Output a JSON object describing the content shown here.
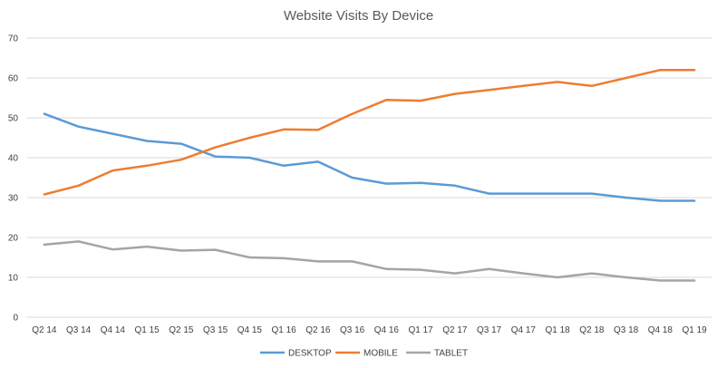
{
  "chart_data": {
    "type": "line",
    "title": "Website Visits By Device",
    "xlabel": "",
    "ylabel": "",
    "ylim": [
      0,
      70
    ],
    "yticks": [
      0,
      10,
      20,
      30,
      40,
      50,
      60,
      70
    ],
    "grid": true,
    "legend": "bottom",
    "categories": [
      "Q2 14",
      "Q3 14",
      "Q4 14",
      "Q1 15",
      "Q2 15",
      "Q3 15",
      "Q4 15",
      "Q1 16",
      "Q2 16",
      "Q3 16",
      "Q4 16",
      "Q1 17",
      "Q2 17",
      "Q3 17",
      "Q4 17",
      "Q1 18",
      "Q2 18",
      "Q3 18",
      "Q4 18",
      "Q1 19"
    ],
    "series": [
      {
        "name": "DESKTOP",
        "color": "#5b9bd5",
        "values": [
          51,
          47.8,
          46,
          44.2,
          43.5,
          40.3,
          40,
          38,
          39,
          35,
          33.5,
          33.7,
          33,
          31,
          31,
          31,
          31,
          30,
          29.2,
          29.2
        ]
      },
      {
        "name": "MOBILE",
        "color": "#ed7d31",
        "values": [
          30.8,
          33,
          36.8,
          38,
          39.5,
          42.6,
          45,
          47.1,
          47,
          51,
          54.5,
          54.3,
          56,
          57,
          58,
          59,
          58,
          60,
          62,
          62
        ]
      },
      {
        "name": "TABLET",
        "color": "#a5a5a5",
        "values": [
          18.2,
          19,
          17,
          17.7,
          16.7,
          16.9,
          15,
          14.8,
          14,
          14,
          12.1,
          11.9,
          11,
          12.1,
          11,
          10,
          11,
          10,
          9.2,
          9.2
        ]
      }
    ]
  }
}
